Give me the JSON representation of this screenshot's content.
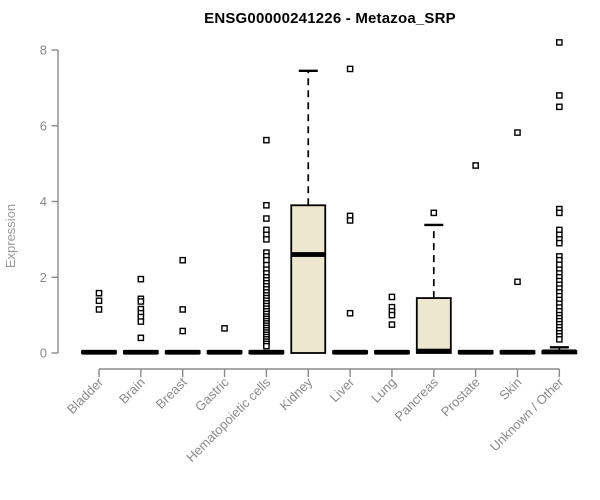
{
  "chart_data": {
    "type": "boxplot",
    "title": "ENSG00000241226 - Metazoa_SRP",
    "ylabel": "Expression",
    "xlabel": "",
    "ylim": [
      0,
      8.2
    ],
    "y_axis": {
      "ticks": [
        0,
        2,
        4,
        6,
        8
      ]
    },
    "legend": "none",
    "grid": false,
    "colors": {
      "box_fill": "#ECE7CE",
      "box_stroke": "#000000",
      "axis": "#8a8a8a",
      "title": "#000000"
    },
    "categories": [
      "Bladder",
      "Brain",
      "Breast",
      "Gastric",
      "Hematopoietic cells",
      "Kidney",
      "Liver",
      "Lung",
      "Pancreas",
      "Prostate",
      "Skin",
      "Unknown / Other"
    ],
    "series": [
      {
        "label": "Bladder",
        "q1": 0,
        "median": 0.02,
        "q3": 0.05,
        "whisker_low": 0,
        "whisker_high": 0.05,
        "outliers": [
          1.58,
          1.38,
          1.15
        ]
      },
      {
        "label": "Brain",
        "q1": 0,
        "median": 0.02,
        "q3": 0.05,
        "whisker_low": 0,
        "whisker_high": 0.05,
        "outliers": [
          1.95,
          1.43,
          1.36,
          1.16,
          1.05,
          0.95,
          0.83,
          0.4
        ]
      },
      {
        "label": "Breast",
        "q1": 0,
        "median": 0.02,
        "q3": 0.05,
        "whisker_low": 0,
        "whisker_high": 0.05,
        "outliers": [
          2.45,
          1.15,
          0.58
        ]
      },
      {
        "label": "Gastric",
        "q1": 0,
        "median": 0.02,
        "q3": 0.05,
        "whisker_low": 0,
        "whisker_high": 0.05,
        "outliers": [
          0.65
        ]
      },
      {
        "label": "Hematopoietic cells",
        "q1": 0,
        "median": 0.02,
        "q3": 0.05,
        "whisker_low": 0,
        "whisker_high": 0.05,
        "outliers": [
          5.62,
          3.9,
          3.55,
          3.25,
          3.12,
          3.0,
          2.65,
          2.55,
          2.45,
          2.32,
          2.2,
          2.1,
          2.0,
          1.92,
          1.84,
          1.76,
          1.68,
          1.6,
          1.52,
          1.45,
          1.38,
          1.31,
          1.24,
          1.17,
          1.1,
          1.03,
          0.96,
          0.9,
          0.84,
          0.78,
          0.72,
          0.66,
          0.6,
          0.54,
          0.48,
          0.42,
          0.36,
          0.3,
          0.24,
          0.18
        ]
      },
      {
        "label": "Kidney",
        "q1": 0,
        "median": 2.6,
        "q3": 3.9,
        "whisker_low": 0,
        "whisker_high": 7.45,
        "outliers": []
      },
      {
        "label": "Liver",
        "q1": 0,
        "median": 0.02,
        "q3": 0.05,
        "whisker_low": 0,
        "whisker_high": 0.05,
        "outliers": [
          7.5,
          3.62,
          3.5,
          1.05
        ]
      },
      {
        "label": "Lung",
        "q1": 0,
        "median": 0.02,
        "q3": 0.05,
        "whisker_low": 0,
        "whisker_high": 0.05,
        "outliers": [
          1.48,
          1.21,
          1.1,
          1.0,
          0.75
        ]
      },
      {
        "label": "Pancreas",
        "q1": 0,
        "median": 0.05,
        "q3": 1.45,
        "whisker_low": 0,
        "whisker_high": 3.38,
        "outliers": [
          3.7
        ]
      },
      {
        "label": "Prostate",
        "q1": 0,
        "median": 0.02,
        "q3": 0.05,
        "whisker_low": 0,
        "whisker_high": 0.05,
        "outliers": [
          4.95
        ]
      },
      {
        "label": "Skin",
        "q1": 0,
        "median": 0.02,
        "q3": 0.05,
        "whisker_low": 0,
        "whisker_high": 0.05,
        "outliers": [
          5.82,
          1.88
        ]
      },
      {
        "label": "Unknown / Other",
        "q1": 0,
        "median": 0.03,
        "q3": 0.05,
        "whisker_low": 0,
        "whisker_high": 0.15,
        "outliers": [
          8.2,
          6.8,
          6.5,
          3.8,
          3.7,
          3.25,
          3.12,
          3.0,
          2.9,
          2.55,
          2.45,
          2.33,
          2.2,
          2.1,
          2.0,
          1.9,
          1.8,
          1.7,
          1.6,
          1.5,
          1.4,
          1.3,
          1.2,
          1.1,
          1.0,
          0.92,
          0.84,
          0.76,
          0.68,
          0.6,
          0.52,
          0.44,
          0.36
        ]
      }
    ]
  }
}
